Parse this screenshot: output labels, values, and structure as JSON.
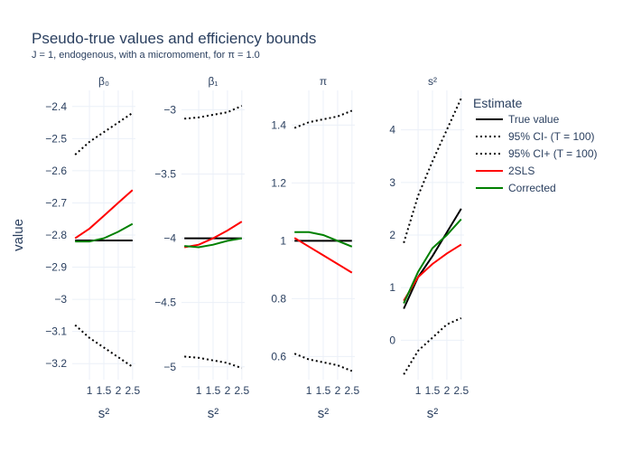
{
  "header": {
    "title": "Pseudo-true values and efficiency bounds",
    "subtitle": "J = 1, endogenous, with a micromoment,  for π = 1.0"
  },
  "axis": {
    "ylabel": "value",
    "xlabel": "s²"
  },
  "legend": {
    "title": "Estimate",
    "position": "right",
    "entries": [
      {
        "label": "True value",
        "color": "#000000",
        "dash": "solid"
      },
      {
        "label": "95% CI- (T = 100)",
        "color": "#000000",
        "dash": "dot"
      },
      {
        "label": "95% CI+ (T = 100)",
        "color": "#000000",
        "dash": "dot"
      },
      {
        "label": "2SLS",
        "color": "#ff0000",
        "dash": "solid"
      },
      {
        "label": "Corrected",
        "color": "#008000",
        "dash": "solid"
      }
    ]
  },
  "chart_data": [
    {
      "type": "line",
      "title": "β₀",
      "xlabel": "s²",
      "ylabel": "value",
      "x": [
        0.5,
        1.0,
        1.5,
        2.0,
        2.5
      ],
      "xticks": [
        "1",
        "1.5",
        "2",
        "2.5"
      ],
      "xlim": [
        0.4,
        2.6
      ],
      "ylim": [
        -3.25,
        -2.35
      ],
      "yticks": [
        -2.4,
        -2.5,
        -2.6,
        -2.7,
        -2.8,
        -2.9,
        -3,
        -3.1,
        -3.2
      ],
      "yticklabels": [
        "−2.4",
        "−2.5",
        "−2.6",
        "−2.7",
        "−2.8",
        "−2.9",
        "−3",
        "−3.1",
        "−3.2"
      ],
      "grid": true,
      "series": [
        {
          "name": "True value",
          "values": [
            -2.817,
            -2.817,
            -2.817,
            -2.817,
            -2.817
          ]
        },
        {
          "name": "95% CI- (T = 100)",
          "values": [
            -3.08,
            -3.12,
            -3.15,
            -3.18,
            -3.21
          ]
        },
        {
          "name": "95% CI+ (T = 100)",
          "values": [
            -2.55,
            -2.51,
            -2.48,
            -2.45,
            -2.42
          ]
        },
        {
          "name": "2SLS",
          "values": [
            -2.81,
            -2.78,
            -2.74,
            -2.7,
            -2.66
          ]
        },
        {
          "name": "Corrected",
          "values": [
            -2.82,
            -2.82,
            -2.81,
            -2.79,
            -2.765
          ]
        }
      ]
    },
    {
      "type": "line",
      "title": "β₁",
      "xlabel": "s²",
      "ylabel": "",
      "x": [
        0.5,
        1.0,
        1.5,
        2.0,
        2.5
      ],
      "xticks": [
        "1",
        "1.5",
        "2",
        "2.5"
      ],
      "xlim": [
        0.4,
        2.6
      ],
      "ylim": [
        -5.1,
        -2.85
      ],
      "yticks": [
        -3,
        -3.5,
        -4,
        -4.5,
        -5
      ],
      "yticklabels": [
        "−3",
        "−3.5",
        "−4",
        "−4.5",
        "−5"
      ],
      "grid": true,
      "series": [
        {
          "name": "True value",
          "values": [
            -4.0,
            -4.0,
            -4.0,
            -4.0,
            -4.0
          ]
        },
        {
          "name": "95% CI- (T = 100)",
          "values": [
            -4.92,
            -4.93,
            -4.95,
            -4.97,
            -5.01
          ]
        },
        {
          "name": "95% CI+ (T = 100)",
          "values": [
            -3.07,
            -3.06,
            -3.04,
            -3.02,
            -2.97
          ]
        },
        {
          "name": "2SLS",
          "values": [
            -4.07,
            -4.05,
            -4.0,
            -3.94,
            -3.87
          ]
        },
        {
          "name": "Corrected",
          "values": [
            -4.06,
            -4.07,
            -4.05,
            -4.02,
            -4.0
          ]
        }
      ]
    },
    {
      "type": "line",
      "title": "π",
      "xlabel": "s²",
      "ylabel": "",
      "x": [
        0.5,
        1.0,
        1.5,
        2.0,
        2.5
      ],
      "xticks": [
        "1",
        "1.5",
        "2",
        "2.5"
      ],
      "xlim": [
        0.4,
        2.6
      ],
      "ylim": [
        0.52,
        1.52
      ],
      "yticks": [
        1.4,
        1.2,
        1,
        0.8,
        0.6
      ],
      "yticklabels": [
        "1.4",
        "1.2",
        "1",
        "0.8",
        "0.6"
      ],
      "grid": true,
      "series": [
        {
          "name": "True value",
          "values": [
            1.0,
            1.0,
            1.0,
            1.0,
            1.0
          ]
        },
        {
          "name": "95% CI- (T = 100)",
          "values": [
            0.61,
            0.59,
            0.58,
            0.57,
            0.55
          ]
        },
        {
          "name": "95% CI+ (T = 100)",
          "values": [
            1.39,
            1.41,
            1.42,
            1.43,
            1.45
          ]
        },
        {
          "name": "2SLS",
          "values": [
            1.01,
            0.98,
            0.95,
            0.92,
            0.89
          ]
        },
        {
          "name": "Corrected",
          "values": [
            1.03,
            1.03,
            1.02,
            1.0,
            0.98
          ]
        }
      ]
    },
    {
      "type": "line",
      "title": "s²",
      "xlabel": "s²",
      "ylabel": "",
      "x": [
        0.5,
        1.0,
        1.5,
        2.0,
        2.5
      ],
      "xticks": [
        "1",
        "1.5",
        "2",
        "2.5"
      ],
      "xlim": [
        0.4,
        2.6
      ],
      "ylim": [
        -0.75,
        4.75
      ],
      "yticks": [
        4,
        3,
        2,
        1,
        0
      ],
      "yticklabels": [
        "4",
        "3",
        "2",
        "1",
        "0"
      ],
      "grid": true,
      "series": [
        {
          "name": "True value",
          "values": [
            0.6,
            1.2,
            1.6,
            2.05,
            2.5
          ]
        },
        {
          "name": "95% CI- (T = 100)",
          "values": [
            -0.65,
            -0.2,
            0.05,
            0.3,
            0.42
          ]
        },
        {
          "name": "95% CI+ (T = 100)",
          "values": [
            1.85,
            2.75,
            3.4,
            4.0,
            4.6
          ]
        },
        {
          "name": "2SLS",
          "values": [
            0.75,
            1.2,
            1.45,
            1.65,
            1.82
          ]
        },
        {
          "name": "Corrected",
          "values": [
            0.7,
            1.3,
            1.75,
            2.0,
            2.3
          ]
        }
      ]
    }
  ]
}
